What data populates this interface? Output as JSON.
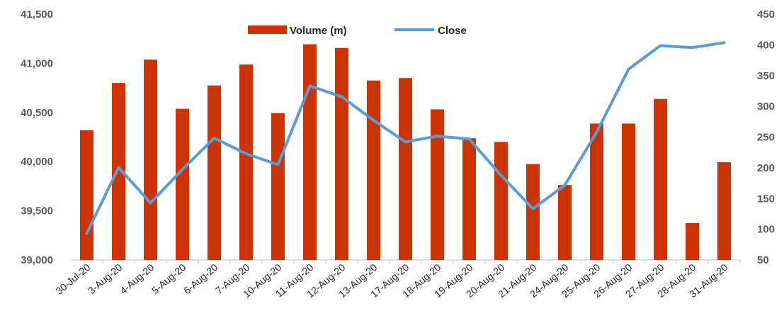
{
  "chart_data": {
    "type": "bar+line",
    "categories": [
      "30-Jul-20",
      "3-Aug-20",
      "4-Aug-20",
      "5-Aug-20",
      "6-Aug-20",
      "7-Aug-20",
      "10-Aug-20",
      "11-Aug-20",
      "12-Aug-20",
      "13-Aug-20",
      "17-Aug-20",
      "18-Aug-20",
      "19-Aug-20",
      "20-Aug-20",
      "21-Aug-20",
      "24-Aug-20",
      "25-Aug-20",
      "26-Aug-20",
      "27-Aug-20",
      "28-Aug-20",
      "31-Aug-20"
    ],
    "series": [
      {
        "name": "Volume (m)",
        "type": "bar",
        "axis": "right",
        "color": "#CC3300",
        "values": [
          261,
          338,
          376,
          296,
          334,
          368,
          289,
          401,
          395,
          342,
          346,
          295,
          248,
          242,
          206,
          172,
          272,
          272,
          312,
          110,
          209
        ]
      },
      {
        "name": "Close",
        "type": "line",
        "axis": "left",
        "color": "#5B9BD5",
        "values": [
          39270,
          39940,
          39580,
          39920,
          40240,
          40080,
          39970,
          40770,
          40660,
          40420,
          40200,
          40260,
          40230,
          39860,
          39520,
          39760,
          40300,
          40940,
          41180,
          41160,
          41210
        ]
      }
    ],
    "y_left": {
      "min": 39000,
      "max": 41500,
      "ticks": [
        "39,000",
        "39,500",
        "40,000",
        "40,500",
        "41,000",
        "41,500"
      ]
    },
    "y_right": {
      "min": 50,
      "max": 450,
      "ticks": [
        "50",
        "100",
        "150",
        "200",
        "250",
        "300",
        "350",
        "400",
        "450"
      ]
    },
    "legend_position": "top-center",
    "grid": false
  }
}
